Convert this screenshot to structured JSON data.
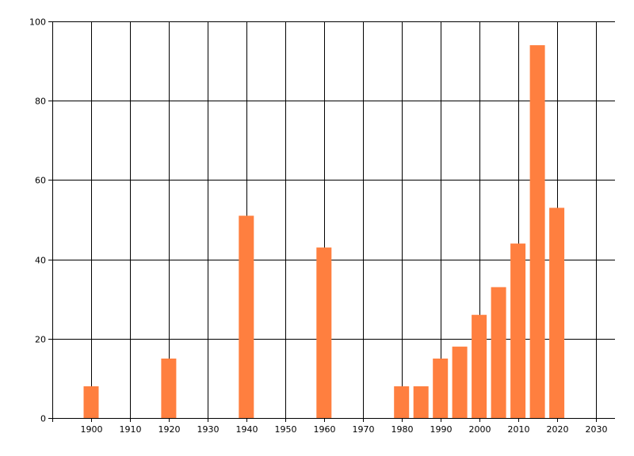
{
  "chart_data": {
    "type": "bar",
    "title": "",
    "xlabel": "",
    "ylabel": "",
    "xlim": [
      1890,
      2035
    ],
    "ylim": [
      0,
      100
    ],
    "x_ticks": [
      1900,
      1910,
      1920,
      1930,
      1940,
      1950,
      1960,
      1970,
      1980,
      1990,
      2000,
      2010,
      2020,
      2030
    ],
    "y_ticks": [
      0,
      20,
      40,
      60,
      80,
      100
    ],
    "grid": true,
    "legend": "none",
    "bar_color": "#ff7f3f",
    "x": [
      1900,
      1920,
      1940,
      1960,
      1980,
      1985,
      1990,
      1995,
      2000,
      2005,
      2010,
      2015,
      2020
    ],
    "values": [
      8,
      15,
      51,
      43,
      8,
      8,
      15,
      18,
      26,
      33,
      44,
      94,
      53
    ]
  }
}
